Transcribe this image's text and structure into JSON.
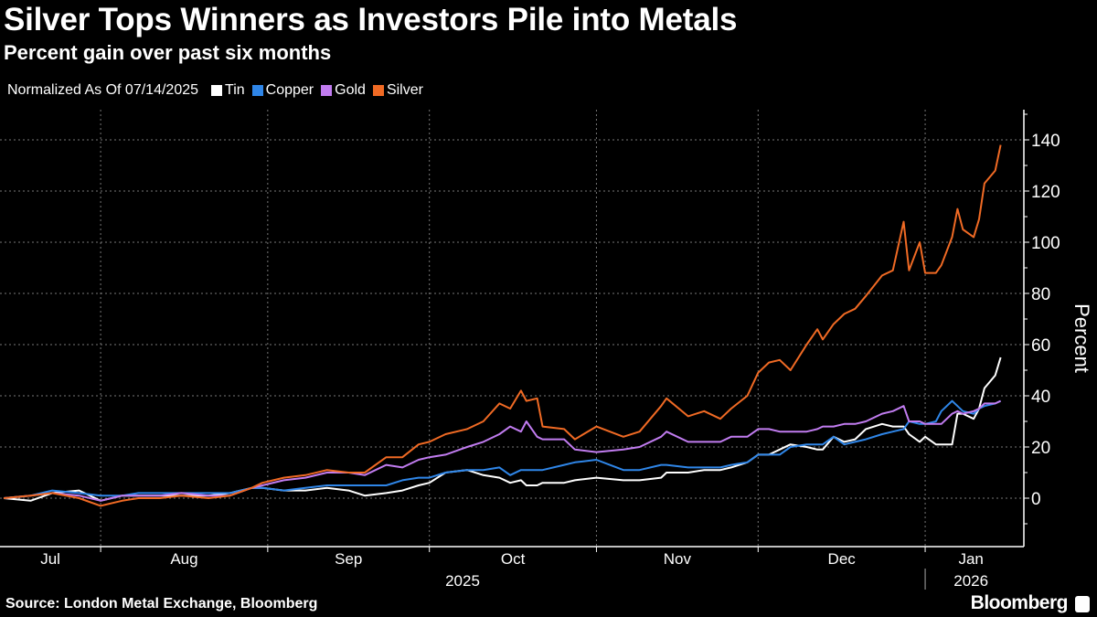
{
  "title": "Silver Tops Winners as Investors Pile into Metals",
  "subtitle": "Percent gain over past six months",
  "legend_note": "Normalized As Of 07/14/2025",
  "source": "Source: London Metal Exchange, Bloomberg",
  "brand": "Bloomberg",
  "chart_data": {
    "type": "line",
    "title": "Silver Tops Winners as Investors Pile into Metals",
    "subtitle": "Percent gain over past six months",
    "xlabel": "",
    "ylabel": "Percent",
    "x_unit": "days since 2025-07-14",
    "ylim": [
      -19,
      151
    ],
    "yticks": [
      0,
      20,
      40,
      60,
      80,
      100,
      120,
      140
    ],
    "grid": true,
    "legend_position": "top-left",
    "months": [
      {
        "label": "Jul",
        "start": -13,
        "end": 18
      },
      {
        "label": "Aug",
        "start": 18,
        "end": 49
      },
      {
        "label": "Sep",
        "start": 49,
        "end": 79
      },
      {
        "label": "Oct",
        "start": 79,
        "end": 110
      },
      {
        "label": "Nov",
        "start": 110,
        "end": 140
      },
      {
        "label": "Dec",
        "start": 140,
        "end": 171
      },
      {
        "label": "Jan",
        "start": 171,
        "end": 188
      }
    ],
    "years": [
      {
        "label": "2025",
        "start": -13,
        "end": 171
      },
      {
        "label": "2026",
        "start": 171,
        "end": 188
      }
    ],
    "x": [
      0,
      5,
      9,
      14,
      18,
      22,
      25,
      29,
      33,
      38,
      42,
      46,
      48,
      52,
      56,
      60,
      64,
      67,
      71,
      74,
      77,
      79,
      82,
      86,
      89,
      92,
      94,
      96,
      97,
      99,
      100,
      104,
      106,
      110,
      115,
      118,
      122,
      123,
      127,
      130,
      133,
      135,
      138,
      140,
      142,
      144,
      146,
      149,
      151,
      152,
      154,
      156,
      158,
      160,
      163,
      165,
      167,
      168,
      170,
      171,
      173,
      174,
      176,
      177,
      178,
      180,
      181,
      182,
      184,
      185
    ],
    "series": [
      {
        "name": "Tin",
        "color": "#ffffff",
        "values": [
          0,
          -1,
          2,
          3,
          -1,
          1,
          1,
          1,
          1,
          1,
          2,
          4,
          4,
          3,
          3,
          4,
          3,
          1,
          2,
          3,
          5,
          6,
          10,
          11,
          9,
          8,
          6,
          7,
          5,
          5,
          6,
          6,
          7,
          8,
          7,
          7,
          8,
          10,
          10,
          11,
          11,
          12,
          14,
          17,
          17,
          19,
          21,
          20,
          19,
          19,
          24,
          22,
          23,
          27,
          29,
          28,
          28,
          25,
          22,
          24,
          21,
          21,
          21,
          33,
          33,
          31,
          35,
          43,
          48,
          55
        ]
      },
      {
        "name": "Copper",
        "color": "#2f86e8",
        "values": [
          0,
          1,
          3,
          2,
          1,
          1,
          2,
          2,
          2,
          2,
          2,
          4,
          4,
          3,
          4,
          5,
          5,
          5,
          5,
          7,
          8,
          8,
          10,
          11,
          11,
          12,
          9,
          11,
          11,
          11,
          11,
          13,
          14,
          15,
          11,
          11,
          13,
          13,
          12,
          12,
          12,
          13,
          14,
          17,
          17,
          17,
          20,
          21,
          21,
          21,
          24,
          21,
          22,
          23,
          25,
          26,
          27,
          30,
          29,
          29,
          30,
          34,
          38,
          36,
          34,
          33,
          35,
          36,
          37,
          38
        ]
      },
      {
        "name": "Gold",
        "color": "#c17cf0",
        "values": [
          0,
          1,
          2,
          1,
          -1,
          1,
          1,
          1,
          2,
          1,
          1,
          4,
          5,
          7,
          8,
          10,
          10,
          9,
          13,
          12,
          15,
          16,
          17,
          20,
          22,
          25,
          28,
          26,
          30,
          24,
          23,
          23,
          19,
          18,
          19,
          20,
          24,
          26,
          22,
          22,
          22,
          24,
          24,
          27,
          27,
          26,
          26,
          26,
          27,
          28,
          28,
          29,
          29,
          30,
          33,
          34,
          36,
          30,
          30,
          29,
          29,
          29,
          33,
          34,
          33,
          34,
          35,
          37,
          37,
          38
        ]
      },
      {
        "name": "Silver",
        "color": "#f06a24",
        "values": [
          0,
          1,
          2,
          0,
          -3,
          -1,
          0,
          0,
          1,
          0,
          1,
          4,
          6,
          8,
          9,
          11,
          10,
          10,
          16,
          16,
          21,
          22,
          25,
          27,
          30,
          37,
          35,
          42,
          38,
          39,
          28,
          27,
          23,
          28,
          24,
          26,
          36,
          39,
          32,
          34,
          31,
          35,
          40,
          49,
          53,
          54,
          50,
          60,
          66,
          62,
          68,
          72,
          74,
          79,
          87,
          89,
          108,
          89,
          100,
          88,
          88,
          91,
          102,
          113,
          105,
          102,
          109,
          123,
          128,
          138
        ]
      }
    ]
  }
}
